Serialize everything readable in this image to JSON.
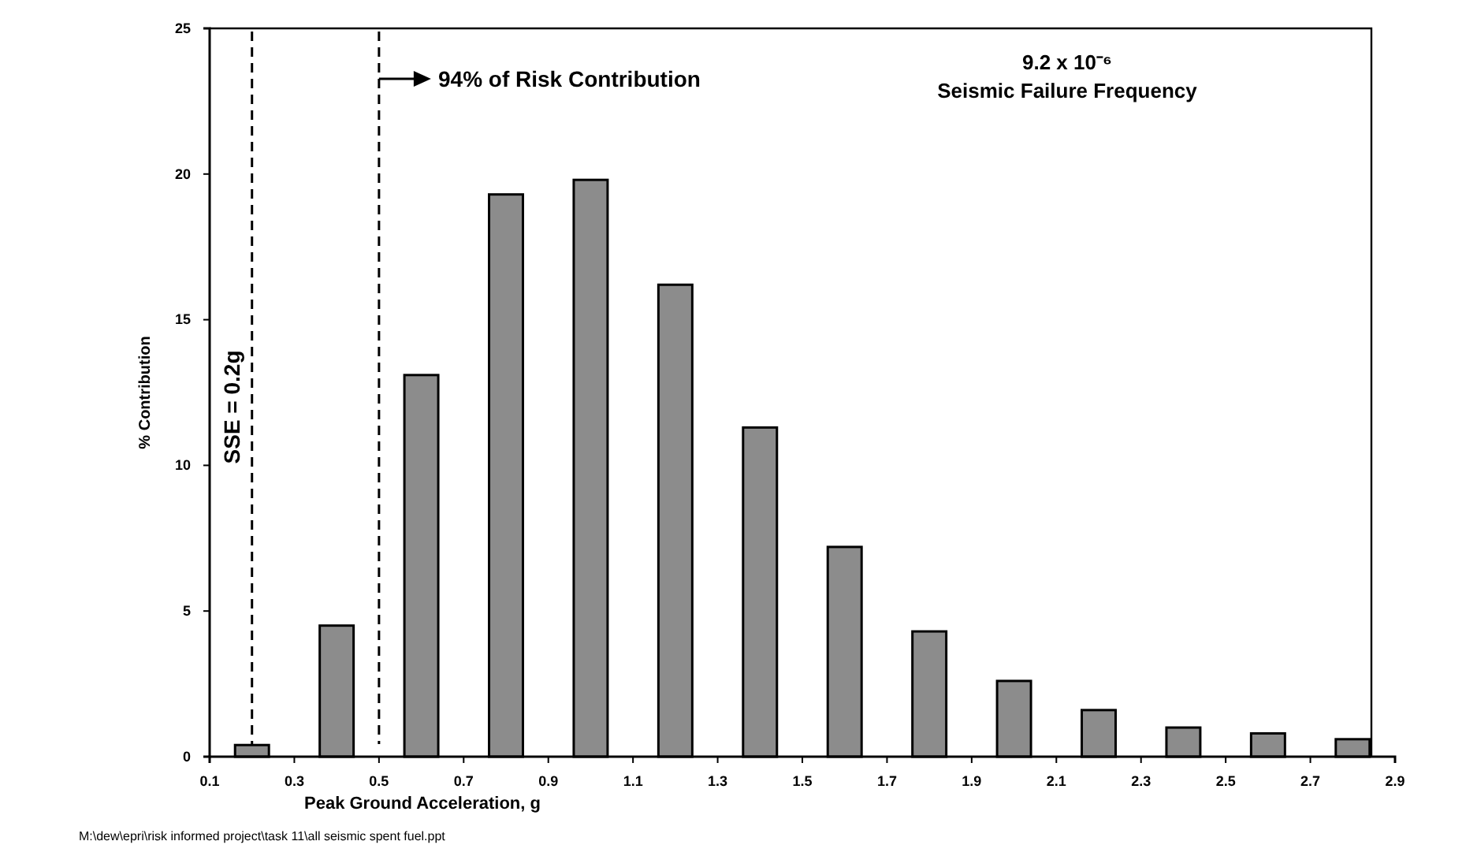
{
  "chart_data": {
    "type": "bar",
    "xlabel": "Peak Ground Acceleration, g",
    "ylabel": "% Contribution",
    "x": [
      0.2,
      0.4,
      0.6,
      0.8,
      1.0,
      1.2,
      1.4,
      1.6,
      1.8,
      2.0,
      2.2,
      2.4,
      2.6,
      2.8
    ],
    "values": [
      0.4,
      4.5,
      13.1,
      19.3,
      19.8,
      16.2,
      11.3,
      7.2,
      4.3,
      2.6,
      1.6,
      1.0,
      0.8,
      0.6
    ],
    "color": "#8c8c8c",
    "xlim": [
      0.1,
      2.9
    ],
    "xticks": [
      0.1,
      0.3,
      0.5,
      0.7,
      0.9,
      1.1,
      1.3,
      1.5,
      1.7,
      1.9,
      2.1,
      2.3,
      2.5,
      2.7,
      2.9
    ],
    "ylim": [
      0,
      25
    ],
    "yticks": [
      0,
      5,
      10,
      15,
      20,
      25
    ],
    "grid": false,
    "ref_lines": [
      {
        "axis": "x",
        "value": 0.2,
        "label": "SSE = 0.2g",
        "line_style": "dashed",
        "color": "#000000"
      },
      {
        "axis": "x",
        "value": 0.5,
        "label": null,
        "line_style": "dashed",
        "color": "#000000"
      }
    ],
    "annotations": [
      "94% of Risk Contribution",
      "9.2 x 10⁻⁶",
      "Seismic Failure Frequency",
      "M:\\dew\\epri\\risk informed project\\task 11\\all seismic spent fuel.ppt"
    ]
  }
}
